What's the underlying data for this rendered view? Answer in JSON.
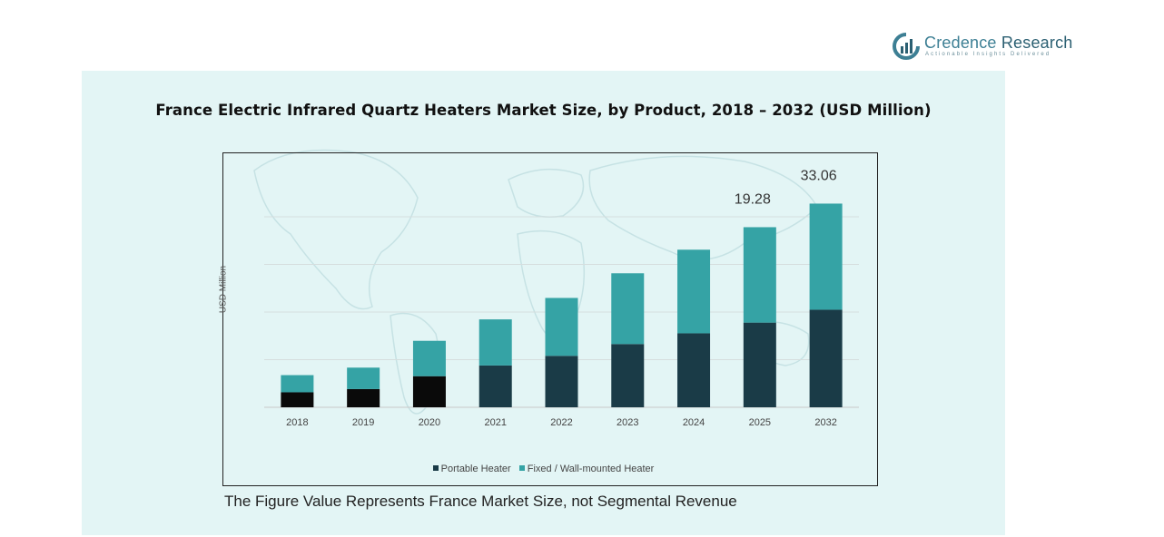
{
  "brand": {
    "name_part1": "Credence",
    "name_part2": " Research",
    "tagline": "Actionable Insights Delivered"
  },
  "footnote": "The Figure Value Represents France Market Size, not Segmental Revenue",
  "colors": {
    "portable": "#1a3b47",
    "fixed": "#35a3a5",
    "early_portable": "#0a0a0a",
    "panel_bg": "#e3f5f5"
  },
  "chart_data": {
    "type": "bar",
    "stacked": true,
    "title": "France Electric Infrared Quartz Heaters Market Size, by Product, 2018 – 2032 (USD Million)",
    "ylabel": "USD Million",
    "xlabel": "",
    "categories": [
      "2018",
      "2019",
      "2020",
      "2021",
      "2022",
      "2023",
      "2024",
      "2025",
      "2032"
    ],
    "series": [
      {
        "name": "Portable Heater",
        "values": [
          1.4,
          1.7,
          2.9,
          3.9,
          4.8,
          5.9,
          6.9,
          7.9,
          9.1
        ]
      },
      {
        "name": "Fixed / Wall-mounted Heater",
        "values": [
          1.6,
          2.0,
          3.3,
          4.3,
          5.4,
          6.6,
          7.8,
          8.9,
          9.9
        ]
      }
    ],
    "data_labels": [
      {
        "category": "2025",
        "text": "19.28"
      },
      {
        "category": "2032",
        "text": "33.06"
      }
    ],
    "ylim": [
      0,
      22
    ],
    "grid": true,
    "legend": "bottom"
  }
}
